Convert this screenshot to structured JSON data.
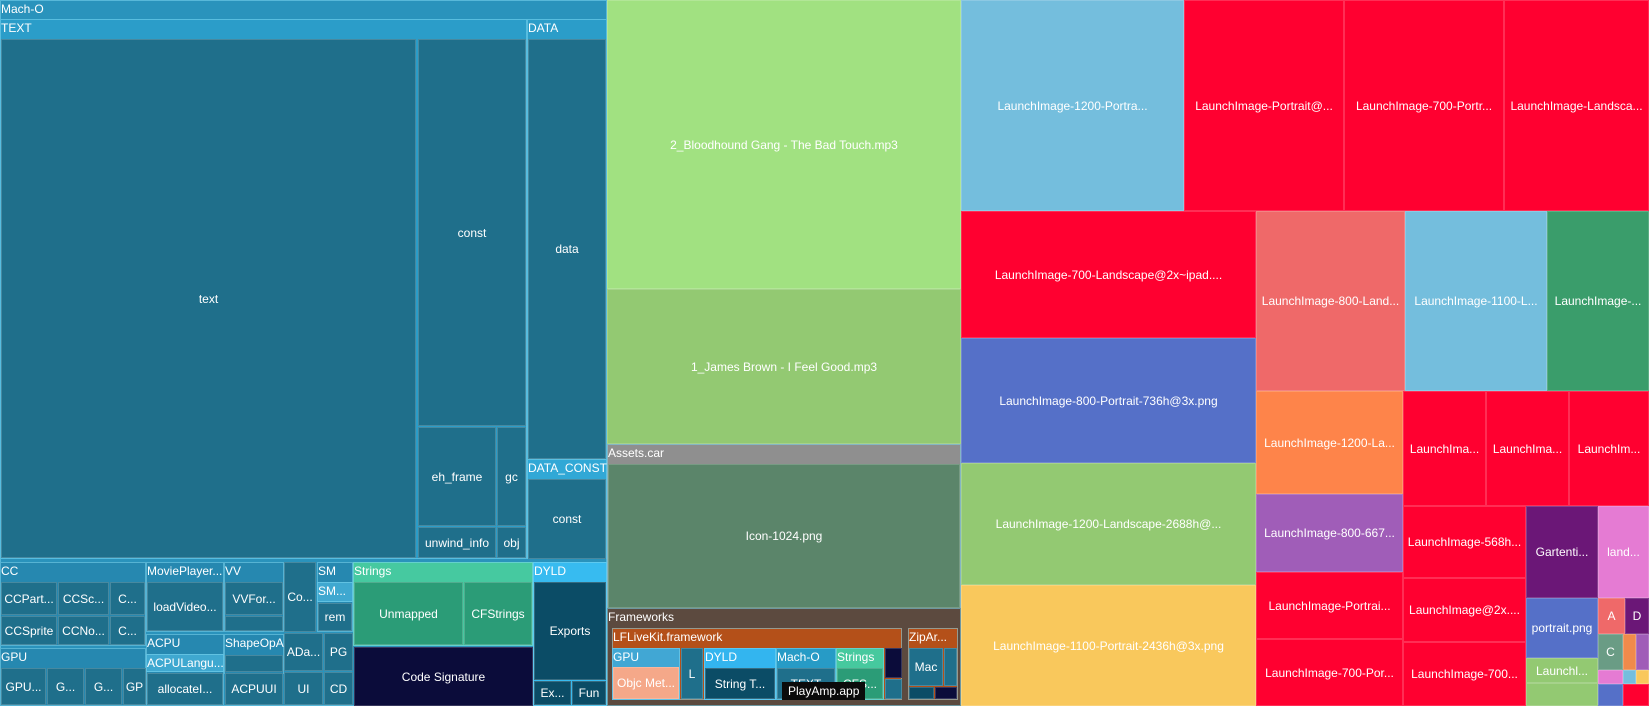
{
  "groups": [
    {
      "id": "macho",
      "title": "Mach-O",
      "color": "#2a93bc"
    },
    {
      "id": "text-seg",
      "title": "TEXT",
      "color": "#2b9dc9"
    },
    {
      "id": "data-seg",
      "title": "DATA",
      "color": "#2b9dc9"
    },
    {
      "id": "data-const-seg",
      "title": "DATA_CONST",
      "color": "#31a8d6"
    },
    {
      "id": "cc",
      "title": "CC",
      "color": "#2688b0"
    },
    {
      "id": "movieplayer",
      "title": "MoviePlayer...",
      "color": "#2688b0"
    },
    {
      "id": "vv",
      "title": "VV",
      "color": "#2688b0"
    },
    {
      "id": "sm",
      "title": "SM",
      "color": "#2688b0"
    },
    {
      "id": "sm2",
      "title": "SM...",
      "color": "#3fa8d0"
    },
    {
      "id": "gpu-macho",
      "title": "GPU",
      "color": "#2688b0"
    },
    {
      "id": "acpu",
      "title": "ACPU",
      "color": "#2688b0"
    },
    {
      "id": "acpu-langu",
      "title": "ACPULangu...",
      "color": "#3fa8d0"
    },
    {
      "id": "shapeopa",
      "title": "ShapeOpA",
      "color": "#2688b0"
    },
    {
      "id": "strings",
      "title": "Strings",
      "color": "#46c9a0"
    },
    {
      "id": "dyld",
      "title": "DYLD",
      "color": "#37bbf0"
    },
    {
      "id": "assets",
      "title": "Assets.car",
      "color": "#8f8f8f"
    },
    {
      "id": "frameworks",
      "title": "Frameworks",
      "color": "#5c4a3f"
    },
    {
      "id": "lflive",
      "title": "LFLiveKit.framework",
      "color": "#b45019"
    },
    {
      "id": "fw-gpu",
      "title": "GPU",
      "color": "#41a7d4"
    },
    {
      "id": "fw-dyld",
      "title": "DYLD",
      "color": "#33b5ef"
    },
    {
      "id": "fw-macho",
      "title": "Mach-O",
      "color": "#279bc6"
    },
    {
      "id": "fw-strings",
      "title": "Strings",
      "color": "#46c99e"
    },
    {
      "id": "ziparchive",
      "title": "ZipAr...",
      "color": "#b45019"
    }
  ],
  "blocks": [
    {
      "id": "text",
      "label": "text",
      "color": "#1f6f8b"
    },
    {
      "id": "const-text",
      "label": "const",
      "color": "#1f6f8b"
    },
    {
      "id": "eh-frame",
      "label": "eh_frame",
      "color": "#1f6f8b"
    },
    {
      "id": "gc",
      "label": "gc",
      "color": "#1f6f8b"
    },
    {
      "id": "unwind-info",
      "label": "unwind_info",
      "color": "#1f6f8b"
    },
    {
      "id": "obj",
      "label": "obj",
      "color": "#1f6f8b"
    },
    {
      "id": "data",
      "label": "data",
      "color": "#1f6f8b"
    },
    {
      "id": "const-data",
      "label": "const",
      "color": "#1f6f8b"
    },
    {
      "id": "ccpart",
      "label": "CCPart...",
      "color": "#1f6f8b"
    },
    {
      "id": "ccsc",
      "label": "CCSc...",
      "color": "#1f6f8b"
    },
    {
      "id": "cc-c1",
      "label": "C...",
      "color": "#1f6f8b"
    },
    {
      "id": "ccsprite",
      "label": "CCSprite",
      "color": "#1f6f8b"
    },
    {
      "id": "ccno",
      "label": "CCNo...",
      "color": "#1f6f8b"
    },
    {
      "id": "cc-c2",
      "label": "C...",
      "color": "#1f6f8b"
    },
    {
      "id": "loadvideo",
      "label": "loadVideo...",
      "color": "#1f6f8b"
    },
    {
      "id": "vvfor",
      "label": "VVFor...",
      "color": "#1f6f8b"
    },
    {
      "id": "vv-small",
      "label": "",
      "color": "#1f6f8b"
    },
    {
      "id": "co",
      "label": "Co...",
      "color": "#1f6f8b"
    },
    {
      "id": "rem",
      "label": "rem",
      "color": "#1f6f8b"
    },
    {
      "id": "gpu-a",
      "label": "GPU...",
      "color": "#1f6f8b"
    },
    {
      "id": "gpu-b",
      "label": "G...",
      "color": "#1f6f8b"
    },
    {
      "id": "gpu-c",
      "label": "G...",
      "color": "#1f6f8b"
    },
    {
      "id": "gpu-d",
      "label": "GP",
      "color": "#1f6f8b"
    },
    {
      "id": "allocate",
      "label": "allocateI...",
      "color": "#1f6f8b"
    },
    {
      "id": "acpuui",
      "label": "ACPUUI",
      "color": "#1f6f8b"
    },
    {
      "id": "shapeopa-inner",
      "label": "",
      "color": "#1f6f8b"
    },
    {
      "id": "ada",
      "label": "ADa...",
      "color": "#1f6f8b"
    },
    {
      "id": "pg",
      "label": "PG",
      "color": "#1f6f8b"
    },
    {
      "id": "ui",
      "label": "UI",
      "color": "#1f6f8b"
    },
    {
      "id": "cd",
      "label": "CD",
      "color": "#1f6f8b"
    },
    {
      "id": "unmapped",
      "label": "Unmapped",
      "color": "#2b9c77"
    },
    {
      "id": "cfstrings",
      "label": "CFStrings",
      "color": "#2b9c77"
    },
    {
      "id": "code-signature",
      "label": "Code Signature",
      "color": "#0b0c3a"
    },
    {
      "id": "exports",
      "label": "Exports",
      "color": "#0b4c66"
    },
    {
      "id": "ex",
      "label": "Ex...",
      "color": "#0b4c66"
    },
    {
      "id": "fun",
      "label": "Fun",
      "color": "#0b4c66"
    },
    {
      "id": "mp3-bloodhound",
      "label": "2_Bloodhound Gang - The Bad Touch.mp3",
      "color": "#a1e181"
    },
    {
      "id": "mp3-james",
      "label": "1_James Brown - I Feel Good.mp3",
      "color": "#93c972"
    },
    {
      "id": "icon-1024",
      "label": "Icon-1024.png",
      "color": "#5b856a"
    },
    {
      "id": "objc-met",
      "label": "Objc Met...",
      "color": "#f5a889"
    },
    {
      "id": "fw-l",
      "label": "L",
      "color": "#1f6f8b"
    },
    {
      "id": "string-t",
      "label": "String T...",
      "color": "#0b4c66"
    },
    {
      "id": "fw-text",
      "label": "TEXT",
      "color": "#1f6f8b"
    },
    {
      "id": "cfs",
      "label": "CFS...",
      "color": "#2b9c77"
    },
    {
      "id": "fw-dark",
      "label": "",
      "color": "#0b0c3a"
    },
    {
      "id": "fw-small",
      "label": "",
      "color": "#1f6f8b"
    },
    {
      "id": "mac",
      "label": "Mac",
      "color": "#1f6f8b"
    },
    {
      "id": "zip-a",
      "label": "",
      "color": "#1f6f8b"
    },
    {
      "id": "zip-b",
      "label": "",
      "color": "#0b4c66"
    },
    {
      "id": "zip-c",
      "label": "",
      "color": "#0b0c3a"
    },
    {
      "id": "li-1200-portra",
      "label": "LaunchImage-1200-Portra...",
      "color": "#74bedd"
    },
    {
      "id": "li-portrait-at",
      "label": "LaunchImage-Portrait@...",
      "color": "#ff0030"
    },
    {
      "id": "li-700-portr",
      "label": "LaunchImage-700-Portr...",
      "color": "#ff0030"
    },
    {
      "id": "li-landsca",
      "label": "LaunchImage-Landsca...",
      "color": "#ff0030"
    },
    {
      "id": "li-700-landscape-ipad",
      "label": "LaunchImage-700-Landscape@2x~ipad....",
      "color": "#ff0030"
    },
    {
      "id": "li-800-land",
      "label": "LaunchImage-800-Land...",
      "color": "#ef6969"
    },
    {
      "id": "li-1100-l",
      "label": "LaunchImage-1100-L...",
      "color": "#74bedd"
    },
    {
      "id": "li-green",
      "label": "LaunchImage-...",
      "color": "#3a9d6b"
    },
    {
      "id": "li-800-portrait-736",
      "label": "LaunchImage-800-Portrait-736h@3x.png",
      "color": "#5570c8"
    },
    {
      "id": "li-1200-la",
      "label": "LaunchImage-1200-La...",
      "color": "#fe844a"
    },
    {
      "id": "li-ima-1",
      "label": "LaunchIma...",
      "color": "#ff0030"
    },
    {
      "id": "li-ima-2",
      "label": "LaunchIma...",
      "color": "#ff0030"
    },
    {
      "id": "li-im-3",
      "label": "LaunchIm...",
      "color": "#ff0030"
    },
    {
      "id": "li-1200-landscape-2688",
      "label": "LaunchImage-1200-Landscape-2688h@...",
      "color": "#93c972"
    },
    {
      "id": "li-800-667",
      "label": "LaunchImage-800-667...",
      "color": "#a05db8"
    },
    {
      "id": "li-568h",
      "label": "LaunchImage-568h...",
      "color": "#ff0030"
    },
    {
      "id": "gartenti",
      "label": "Gartenti...",
      "color": "#6b1777"
    },
    {
      "id": "land",
      "label": "land...",
      "color": "#e57bd3"
    },
    {
      "id": "li-1100-portrait-2436",
      "label": "LaunchImage-1100-Portrait-2436h@3x.png",
      "color": "#f9c85c"
    },
    {
      "id": "li-portrai",
      "label": "LaunchImage-Portrai...",
      "color": "#ff0030"
    },
    {
      "id": "li-at2x",
      "label": "LaunchImage@2x....",
      "color": "#ff0030"
    },
    {
      "id": "portrait-png",
      "label": "portrait.png",
      "color": "#5570c8"
    },
    {
      "id": "box-a",
      "label": "A",
      "color": "#ef6969"
    },
    {
      "id": "box-d",
      "label": "D",
      "color": "#6b1777"
    },
    {
      "id": "li-700-por",
      "label": "LaunchImage-700-Por...",
      "color": "#ff0030"
    },
    {
      "id": "li-700-2",
      "label": "LaunchImage-700...",
      "color": "#ff0030"
    },
    {
      "id": "launchi",
      "label": "Launchl...",
      "color": "#93c972"
    },
    {
      "id": "box-c",
      "label": "C",
      "color": "#6a9c85"
    },
    {
      "id": "tiny-1",
      "label": "",
      "color": "#f08a4b"
    },
    {
      "id": "tiny-2",
      "label": "",
      "color": "#a05db8"
    },
    {
      "id": "tiny-3",
      "label": "",
      "color": "#e57bd3"
    },
    {
      "id": "tiny-4",
      "label": "",
      "color": "#74bedd"
    },
    {
      "id": "tiny-5",
      "label": "",
      "color": "#f9c85c"
    },
    {
      "id": "tiny-6",
      "label": "",
      "color": "#5570c8"
    },
    {
      "id": "tiny-7",
      "label": "",
      "color": "#93c972"
    },
    {
      "id": "tiny-8",
      "label": "",
      "color": "#ff0030"
    }
  ],
  "tooltip": "PlayAmp.app"
}
